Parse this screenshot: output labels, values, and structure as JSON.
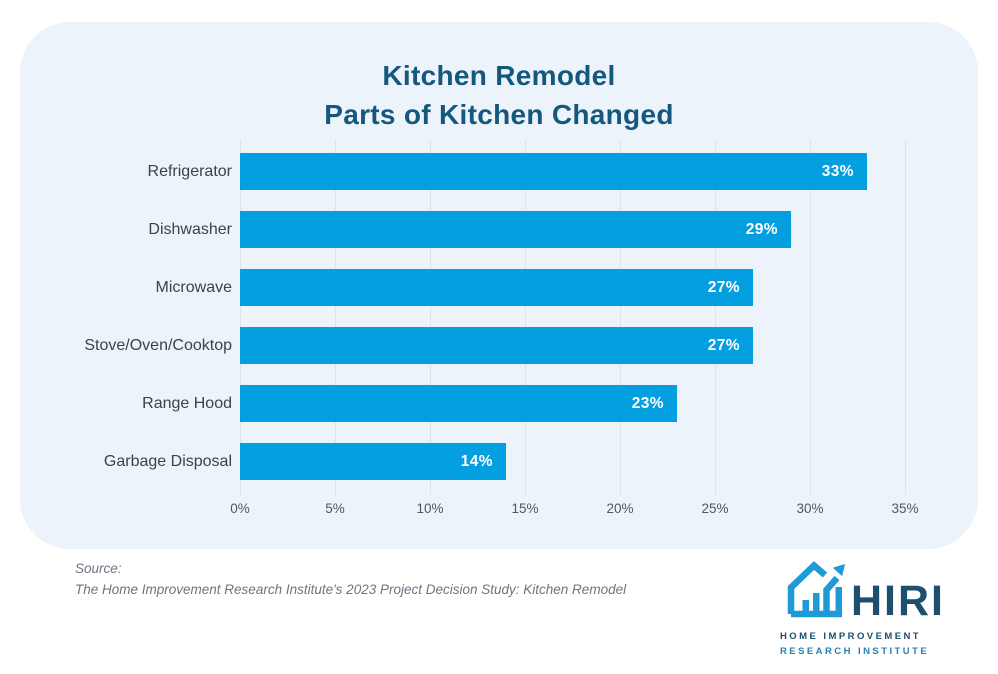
{
  "title": {
    "line1": "Kitchen Remodel",
    "line2": "Parts of Kitchen Changed"
  },
  "chart_data": {
    "type": "bar",
    "orientation": "horizontal",
    "title": "Kitchen Remodel — Parts of Kitchen Changed",
    "categories": [
      "Refrigerator",
      "Dishwasher",
      "Microwave",
      "Stove/Oven/Cooktop",
      "Range Hood",
      "Garbage Disposal"
    ],
    "values": [
      33,
      29,
      27,
      27,
      23,
      14
    ],
    "value_labels": [
      "33%",
      "29%",
      "27%",
      "27%",
      "23%",
      "14%"
    ],
    "x_ticks": [
      "0%",
      "5%",
      "10%",
      "15%",
      "20%",
      "25%",
      "30%",
      "35%"
    ],
    "xlim": [
      0,
      35
    ],
    "grid": true,
    "legend": false,
    "bar_color": "#049fe1",
    "value_label_position": "inside-end"
  },
  "source": {
    "label": "Source:",
    "text": "The Home Improvement Research Institute's 2023 Project Decision Study: Kitchen Remodel"
  },
  "logo": {
    "wordmark": "HIRI",
    "tagline_line1": "HOME IMPROVEMENT",
    "tagline_line2": "RESEARCH INSTITUTE",
    "icon": "house-growth-arrow-icon"
  },
  "colors": {
    "bar": "#049fe1",
    "title": "#14587e",
    "card_bg": "#edf3fb",
    "grid": "#dde2ec",
    "tick": "#515761",
    "label": "#3d4248",
    "source": "#6d7580",
    "logo_navy": "#1d4f6e",
    "logo_blue": "#1e9bd7",
    "tagline_light": "#2a7fae"
  }
}
